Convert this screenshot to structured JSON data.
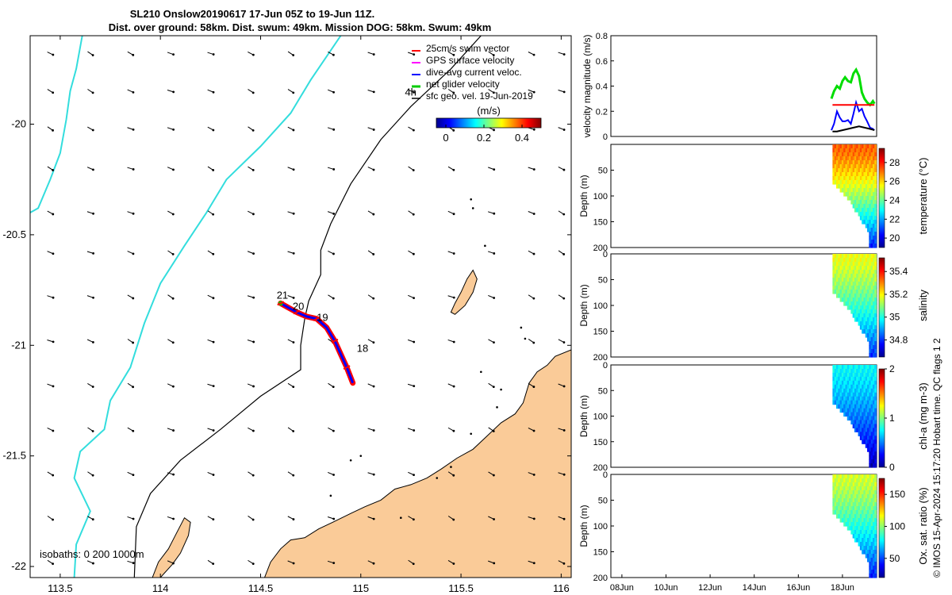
{
  "title_line1": "SL210 Onslow20190617 17-Jun 05Z to 19-Jun 11Z.",
  "title_line2": "Dist. over ground: 58km. Dist. swum: 49km. Mission DOG: 58km. Swum: 49km",
  "side_stamp": "© IMOS 15-Apr-2024 15:17:20 Hobart time. QC flags 1  2",
  "isobaths_label": "isobaths: 0   200  1000m",
  "colors": {
    "land": "#FACB98",
    "coast_line": "#000000",
    "isobath_200": "#000000",
    "isobath_1000": "#33DDDD",
    "track_swim": "#FF0000",
    "track_gps": "#FF00FF",
    "track_current": "#0000FF",
    "track_net": "#00CC00",
    "geo_vel": "#000000"
  },
  "chart_data": [
    {
      "type": "map",
      "xlim": [
        113.35,
        116.05
      ],
      "ylim": [
        -22.05,
        -19.6
      ],
      "xticks": [
        113.5,
        114,
        114.5,
        115,
        115.5,
        116
      ],
      "xtick_labels": [
        "113.5",
        "114",
        "114.5",
        "115",
        "115.5",
        "116"
      ],
      "yticks": [
        -20,
        -20.5,
        -21,
        -21.5,
        -22
      ],
      "ytick_labels": [
        "-20",
        "-20.5",
        "-21",
        "-21.5",
        "-22"
      ],
      "legend": {
        "placement": "top-right",
        "entries": [
          {
            "label": "25cm/s swim vector",
            "color": "#FF0000"
          },
          {
            "label": "GPS surface velocity",
            "color": "#FF00FF"
          },
          {
            "label": "dive-avg current veloc.",
            "color": "#0000FF"
          },
          {
            "label": "net glider velocity",
            "color": "#00CC00"
          },
          {
            "label": "sfc geo. vel. 19-Jun-2019",
            "color": "#000000"
          }
        ]
      },
      "colorbar": {
        "label": "(m/s)",
        "ticks": [
          0,
          0.2,
          0.4
        ],
        "tick_labels": [
          "0",
          "0.2",
          "0.4"
        ],
        "range": [
          -0.05,
          0.5
        ]
      },
      "day_labels": [
        {
          "text": "21",
          "lon": 114.58,
          "lat": -20.79
        },
        {
          "text": "20",
          "lon": 114.66,
          "lat": -20.84
        },
        {
          "text": "19",
          "lon": 114.78,
          "lat": -20.89
        },
        {
          "text": "18",
          "lon": 114.98,
          "lat": -21.03
        },
        {
          "text": "4h",
          "lon": 115.22,
          "lat": -19.87
        }
      ],
      "glider_track": [
        [
          114.6,
          -20.81
        ],
        [
          114.64,
          -20.83
        ],
        [
          114.68,
          -20.85
        ],
        [
          114.73,
          -20.87
        ],
        [
          114.78,
          -20.88
        ],
        [
          114.83,
          -20.92
        ],
        [
          114.87,
          -20.98
        ],
        [
          114.9,
          -21.04
        ],
        [
          114.93,
          -21.1
        ],
        [
          114.96,
          -21.17
        ]
      ],
      "isobath_200": [
        [
          115.6,
          -19.6
        ],
        [
          115.45,
          -19.75
        ],
        [
          115.25,
          -19.92
        ],
        [
          115.1,
          -20.07
        ],
        [
          114.95,
          -20.27
        ],
        [
          114.85,
          -20.45
        ],
        [
          114.8,
          -20.57
        ],
        [
          114.8,
          -20.68
        ],
        [
          114.74,
          -20.8
        ],
        [
          114.72,
          -20.88
        ],
        [
          114.7,
          -21.0
        ],
        [
          114.7,
          -21.11
        ],
        [
          114.5,
          -21.23
        ],
        [
          114.3,
          -21.38
        ],
        [
          114.1,
          -21.52
        ],
        [
          113.95,
          -21.67
        ],
        [
          113.88,
          -21.82
        ],
        [
          113.87,
          -22.05
        ]
      ],
      "isobath_1000": [
        [
          113.61,
          -19.6
        ],
        [
          113.58,
          -19.75
        ],
        [
          113.55,
          -19.85
        ],
        [
          113.53,
          -19.98
        ],
        [
          113.5,
          -20.13
        ],
        [
          113.45,
          -20.25
        ],
        [
          113.39,
          -20.38
        ],
        [
          113.35,
          -20.4
        ],
        null,
        [
          114.9,
          -19.6
        ],
        [
          114.75,
          -19.8
        ],
        [
          114.65,
          -19.95
        ],
        [
          114.5,
          -20.1
        ],
        [
          114.33,
          -20.25
        ],
        [
          114.23,
          -20.4
        ],
        [
          114.12,
          -20.55
        ],
        [
          114.0,
          -20.72
        ],
        [
          113.92,
          -20.9
        ],
        [
          113.85,
          -21.1
        ],
        [
          113.75,
          -21.25
        ],
        [
          113.72,
          -21.38
        ],
        [
          113.6,
          -21.48
        ],
        [
          113.57,
          -21.6
        ],
        [
          113.65,
          -21.75
        ],
        [
          113.58,
          -21.9
        ],
        [
          113.57,
          -22.05
        ]
      ],
      "land_mainland": [
        [
          116.05,
          -21.02
        ],
        [
          115.97,
          -21.05
        ],
        [
          115.93,
          -21.09
        ],
        [
          115.88,
          -21.12
        ],
        [
          115.84,
          -21.17
        ],
        [
          115.81,
          -21.26
        ],
        [
          115.77,
          -21.31
        ],
        [
          115.7,
          -21.35
        ],
        [
          115.63,
          -21.41
        ],
        [
          115.56,
          -21.47
        ],
        [
          115.48,
          -21.51
        ],
        [
          115.4,
          -21.56
        ],
        [
          115.33,
          -21.6
        ],
        [
          115.25,
          -21.63
        ],
        [
          115.17,
          -21.65
        ],
        [
          115.1,
          -21.7
        ],
        [
          115.02,
          -21.73
        ],
        [
          114.95,
          -21.76
        ],
        [
          114.86,
          -21.8
        ],
        [
          114.79,
          -21.83
        ],
        [
          114.72,
          -21.87
        ],
        [
          114.65,
          -21.88
        ],
        [
          114.6,
          -21.92
        ],
        [
          114.55,
          -21.98
        ],
        [
          114.52,
          -22.05
        ],
        [
          116.05,
          -22.05
        ]
      ],
      "land_peninsula": [
        [
          114.0,
          -22.05
        ],
        [
          114.06,
          -21.99
        ],
        [
          114.1,
          -21.94
        ],
        [
          114.14,
          -21.86
        ],
        [
          114.15,
          -21.8
        ],
        [
          114.12,
          -21.78
        ],
        [
          114.08,
          -21.85
        ],
        [
          114.04,
          -21.92
        ],
        [
          113.99,
          -21.98
        ],
        [
          113.96,
          -22.05
        ]
      ],
      "land_island": [
        [
          115.47,
          -20.86
        ],
        [
          115.52,
          -20.82
        ],
        [
          115.56,
          -20.76
        ],
        [
          115.58,
          -20.7
        ],
        [
          115.56,
          -20.66
        ],
        [
          115.53,
          -20.7
        ],
        [
          115.5,
          -20.76
        ],
        [
          115.47,
          -20.81
        ],
        [
          115.45,
          -20.85
        ]
      ],
      "vector_field_lon": [
        113.45,
        113.65,
        113.85,
        114.05,
        114.25,
        114.45,
        114.65,
        114.85,
        115.05,
        115.25,
        115.45,
        115.65,
        115.85,
        116.0
      ],
      "vector_field_lat": [
        -19.68,
        -19.85,
        -20.02,
        -20.2,
        -20.4,
        -20.58,
        -20.78,
        -20.98,
        -21.18,
        -21.38,
        -21.58,
        -21.78,
        -21.98
      ]
    },
    {
      "type": "line",
      "ylabel": "velocity magnitude (m/s)",
      "ylim": [
        0,
        0.8
      ],
      "yticks": [
        0,
        0.2,
        0.4,
        0.6,
        0.8
      ],
      "xlim": [
        7.5,
        19.55
      ],
      "series": [
        {
          "color": "#00DD00",
          "x": [
            17.5,
            17.62,
            17.75,
            17.88,
            18.0,
            18.12,
            18.25,
            18.38,
            18.5,
            18.62,
            18.75,
            18.88,
            19.0,
            19.12,
            19.25,
            19.38,
            19.45
          ],
          "y": [
            0.3,
            0.36,
            0.4,
            0.38,
            0.44,
            0.47,
            0.44,
            0.43,
            0.5,
            0.53,
            0.48,
            0.35,
            0.3,
            0.27,
            0.25,
            0.28,
            0.26
          ]
        },
        {
          "color": "#0000FF",
          "x": [
            17.5,
            17.62,
            17.75,
            17.88,
            18.0,
            18.12,
            18.25,
            18.38,
            18.5,
            18.62,
            18.75,
            18.88,
            19.0,
            19.12,
            19.25,
            19.38,
            19.45
          ],
          "y": [
            0.05,
            0.1,
            0.2,
            0.15,
            0.12,
            0.12,
            0.13,
            0.1,
            0.18,
            0.27,
            0.2,
            0.22,
            0.16,
            0.12,
            0.07,
            0.06,
            0.05
          ]
        },
        {
          "color": "#FF0000",
          "x": [
            17.55,
            17.75,
            18.0,
            18.25,
            18.5,
            18.75,
            19.0,
            19.25,
            19.45
          ],
          "y": [
            0.25,
            0.25,
            0.25,
            0.25,
            0.25,
            0.25,
            0.25,
            0.25,
            0.25
          ]
        },
        {
          "color": "#000000",
          "x": [
            17.55,
            17.75,
            18.0,
            18.25,
            18.5,
            18.75,
            19.0,
            19.25,
            19.45
          ],
          "y": [
            0.04,
            0.04,
            0.05,
            0.06,
            0.07,
            0.08,
            0.07,
            0.06,
            0.05
          ]
        }
      ]
    },
    {
      "type": "heatmap",
      "variable": "temperature (°C)",
      "ylabel": "Depth (m)",
      "yticks": [
        50,
        100,
        150,
        200
      ],
      "clim": [
        19,
        29.5
      ],
      "cbar_ticks": [
        20,
        22,
        24,
        26,
        28
      ],
      "surface_value": 27.2,
      "bottom_value": 20.3
    },
    {
      "type": "heatmap",
      "variable": "salinity",
      "ylabel": "Depth (m)",
      "yticks": [
        0,
        50,
        100,
        150,
        200
      ],
      "clim": [
        34.65,
        35.52
      ],
      "cbar_ticks": [
        34.8,
        35,
        35.2,
        35.4
      ],
      "surface_value": 35.18,
      "bottom_value": 34.78
    },
    {
      "type": "heatmap",
      "variable": "chl-a (mg m-3)",
      "ylabel": "Depth (m)",
      "yticks": [
        0,
        50,
        100,
        150,
        200
      ],
      "clim": [
        0,
        2
      ],
      "cbar_ticks": [
        0,
        1,
        2
      ],
      "surface_value": 0.75,
      "bottom_value": 0.08
    },
    {
      "type": "heatmap",
      "variable": "Ox. sat. ratio (%)",
      "ylabel": "Depth (m)",
      "yticks": [
        0,
        50,
        100,
        150,
        200
      ],
      "clim": [
        20,
        175
      ],
      "cbar_ticks": [
        50,
        100,
        150
      ],
      "surface_value": 110,
      "bottom_value": 40,
      "xticks": [
        "08Jun",
        "10Jun",
        "12Jun",
        "14Jun",
        "16Jun",
        "18Jun"
      ]
    }
  ]
}
